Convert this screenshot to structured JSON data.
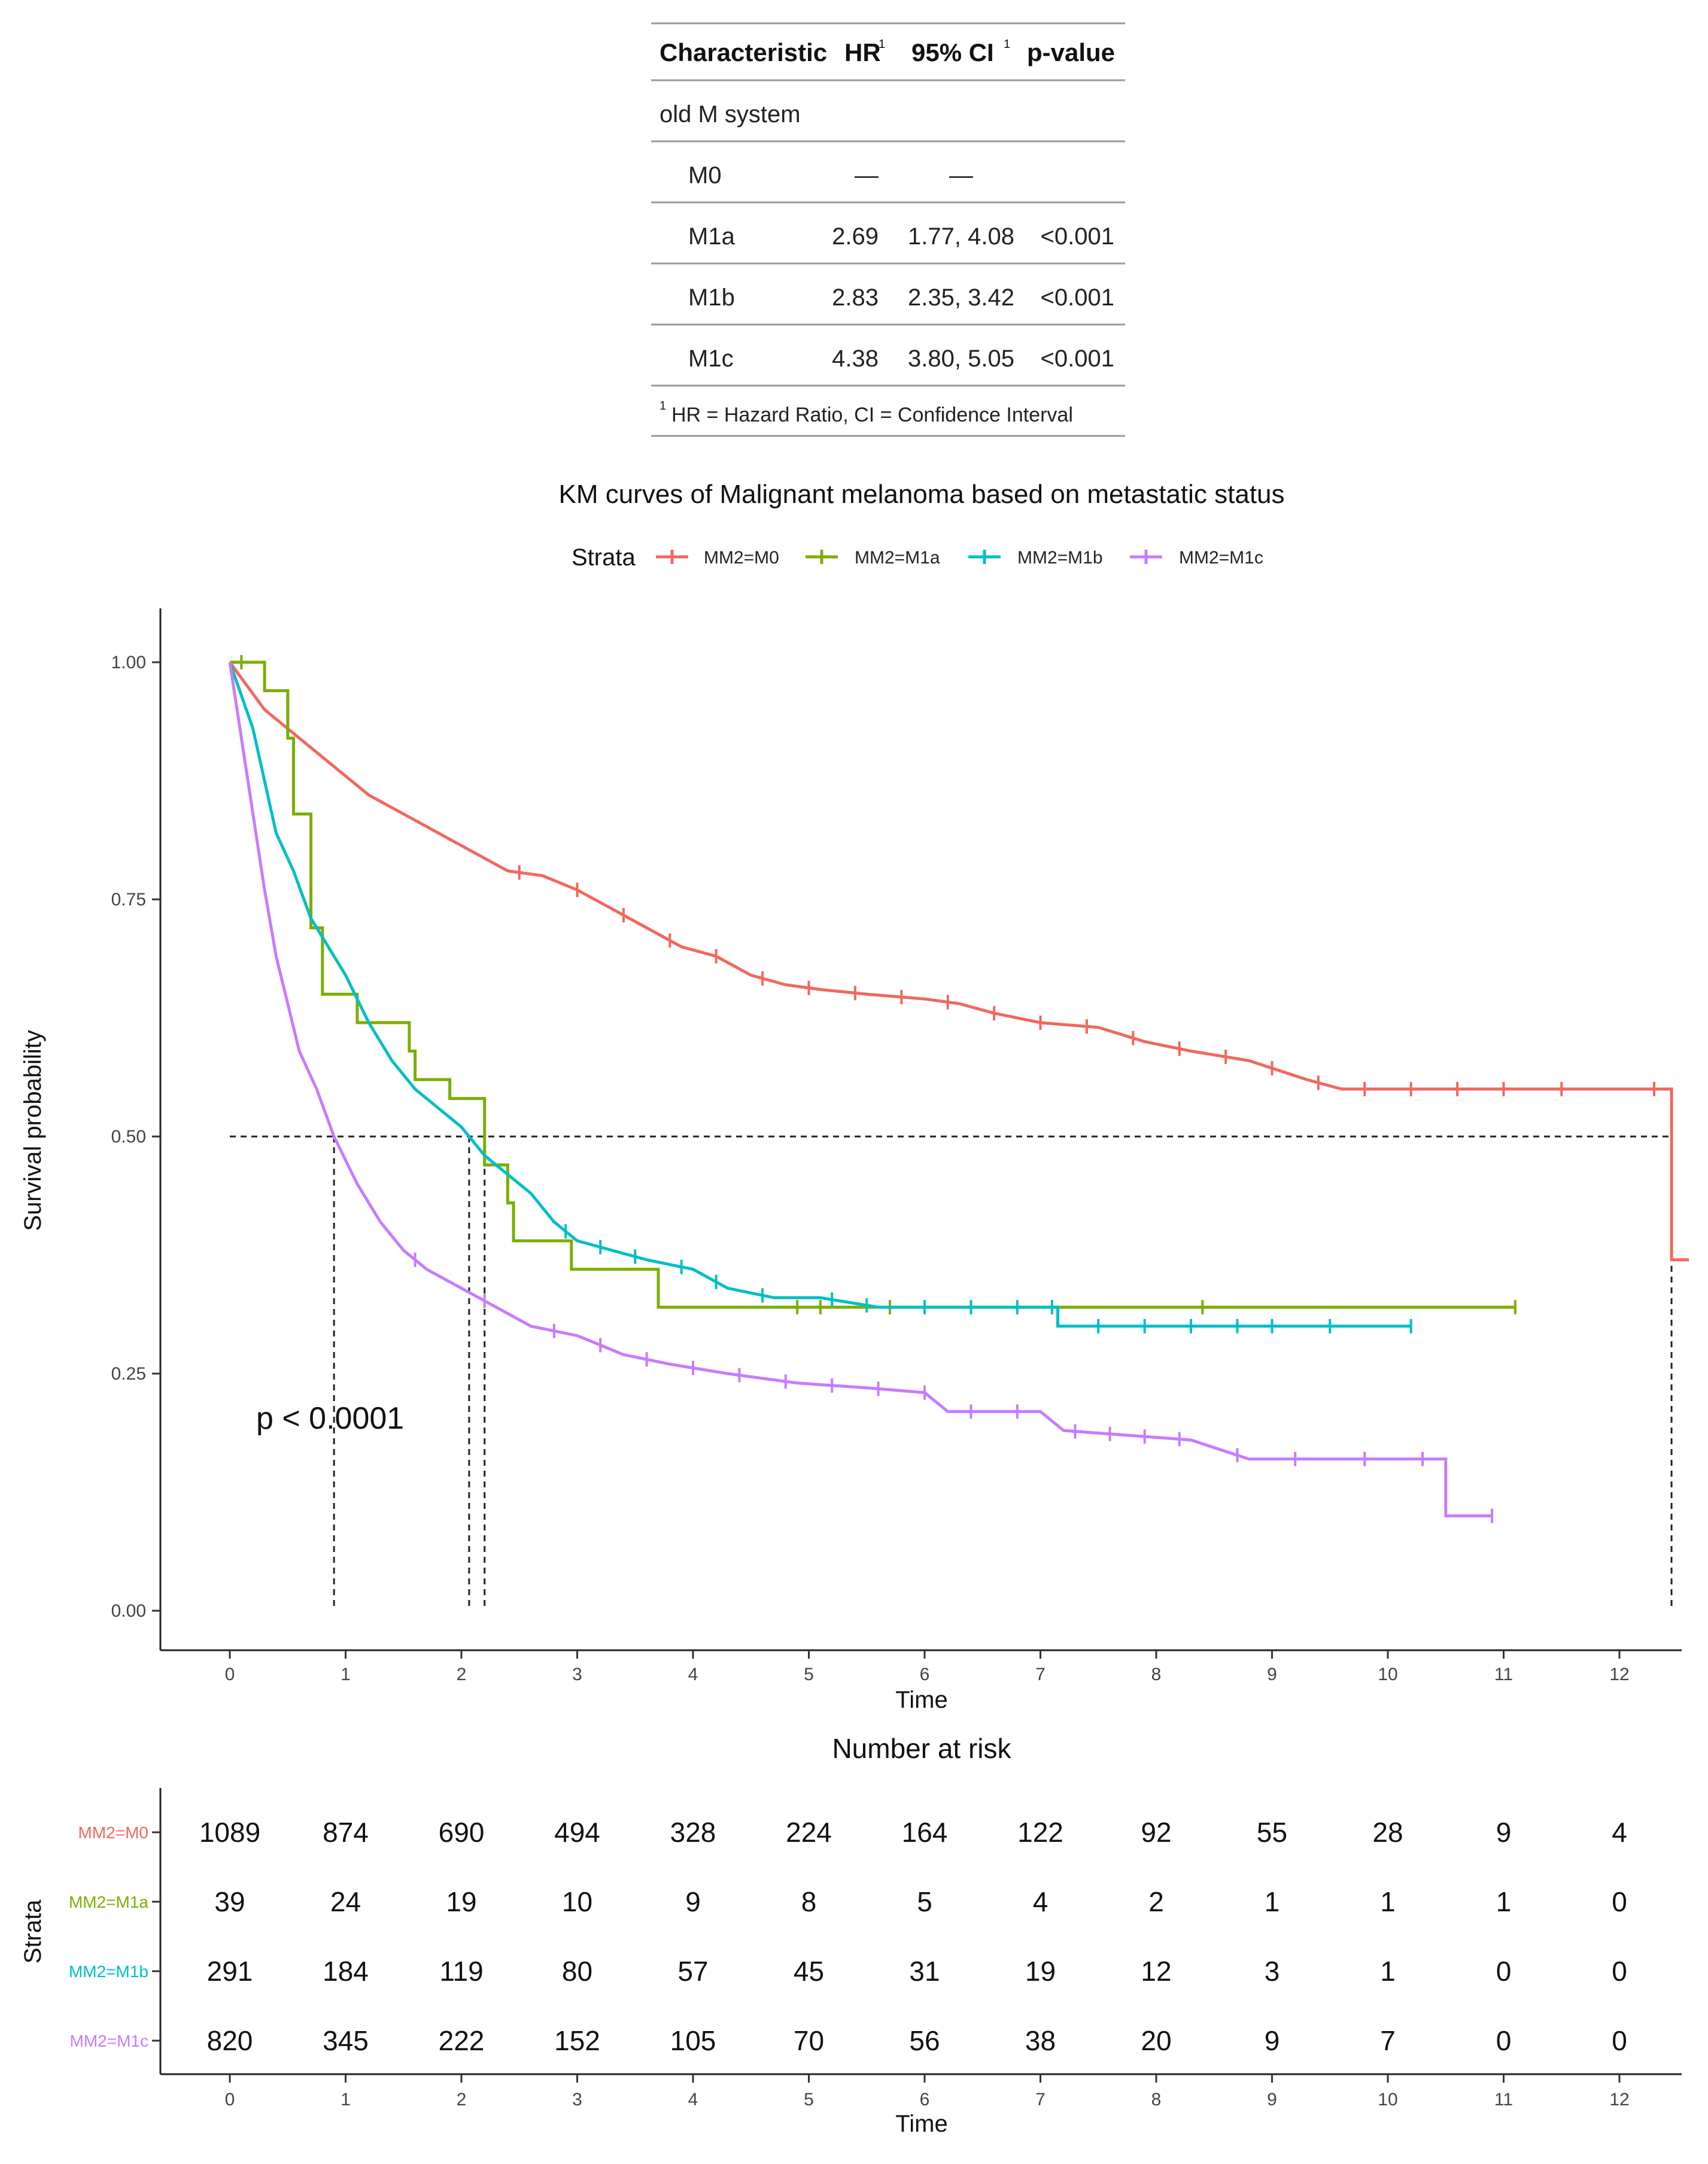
{
  "hr_table": {
    "headers": {
      "characteristic": "Characteristic",
      "hr": "HR",
      "hr_sup": "1",
      "ci": "95% CI",
      "ci_sup": "1",
      "pvalue": "p-value"
    },
    "group_label": "old M system",
    "rows": [
      {
        "label": "M0",
        "hr": "—",
        "ci": "—",
        "p": ""
      },
      {
        "label": "M1a",
        "hr": "2.69",
        "ci": "1.77, 4.08",
        "p": "<0.001"
      },
      {
        "label": "M1b",
        "hr": "2.83",
        "ci": "2.35, 3.42",
        "p": "<0.001"
      },
      {
        "label": "M1c",
        "hr": "4.38",
        "ci": "3.80, 5.05",
        "p": "<0.001"
      }
    ],
    "footnote_sup": "1",
    "footnote": "HR = Hazard Ratio, CI = Confidence Interval"
  },
  "chart_data": {
    "type": "line",
    "subtype": "kaplan-meier step curves",
    "title": "KM curves of Malignant melanoma based on metastatic status",
    "legend_title": "Strata",
    "xlabel": "Time",
    "ylabel": "Survival probability",
    "xlim": [
      0,
      12.5
    ],
    "ylim": [
      0,
      1
    ],
    "x_ticks": [
      0,
      1,
      2,
      3,
      4,
      5,
      6,
      7,
      8,
      9,
      10,
      11,
      12
    ],
    "y_ticks": [
      "0.00",
      "0.25",
      "0.50",
      "0.75",
      "1.00"
    ],
    "median_reference": 0.5,
    "pvalue_annotation": "p < 0.0001",
    "series": [
      {
        "name": "MM2=M0",
        "color": "#f0685f",
        "points": [
          [
            0,
            1
          ],
          [
            0.3,
            0.95
          ],
          [
            0.6,
            0.92
          ],
          [
            0.9,
            0.89
          ],
          [
            1.2,
            0.86
          ],
          [
            1.5,
            0.84
          ],
          [
            1.8,
            0.82
          ],
          [
            2.1,
            0.8
          ],
          [
            2.4,
            0.78
          ],
          [
            2.7,
            0.775
          ],
          [
            3.0,
            0.76
          ],
          [
            3.3,
            0.74
          ],
          [
            3.6,
            0.72
          ],
          [
            3.9,
            0.7
          ],
          [
            4.2,
            0.69
          ],
          [
            4.5,
            0.67
          ],
          [
            4.8,
            0.66
          ],
          [
            5.1,
            0.655
          ],
          [
            5.5,
            0.65
          ],
          [
            6.0,
            0.645
          ],
          [
            6.3,
            0.64
          ],
          [
            6.6,
            0.63
          ],
          [
            7.0,
            0.62
          ],
          [
            7.5,
            0.615
          ],
          [
            7.9,
            0.6
          ],
          [
            8.3,
            0.59
          ],
          [
            8.8,
            0.58
          ],
          [
            9.3,
            0.56
          ],
          [
            9.6,
            0.55
          ],
          [
            10.5,
            0.55
          ],
          [
            12.45,
            0.55
          ],
          [
            12.45,
            0.37
          ],
          [
            12.6,
            0.37
          ]
        ],
        "censor_times": [
          2.5,
          3.0,
          3.4,
          3.8,
          4.2,
          4.6,
          5.0,
          5.4,
          5.8,
          6.2,
          6.6,
          7.0,
          7.4,
          7.8,
          8.2,
          8.6,
          9.0,
          9.4,
          9.8,
          10.2,
          10.6,
          11.0,
          11.5,
          12.3
        ]
      },
      {
        "name": "MM2=M1a",
        "color": "#7cae00",
        "points": [
          [
            0,
            1
          ],
          [
            0.3,
            1
          ],
          [
            0.3,
            0.97
          ],
          [
            0.5,
            0.97
          ],
          [
            0.5,
            0.92
          ],
          [
            0.55,
            0.92
          ],
          [
            0.55,
            0.84
          ],
          [
            0.7,
            0.84
          ],
          [
            0.7,
            0.72
          ],
          [
            0.8,
            0.72
          ],
          [
            0.8,
            0.65
          ],
          [
            1.1,
            0.65
          ],
          [
            1.1,
            0.62
          ],
          [
            1.55,
            0.62
          ],
          [
            1.55,
            0.59
          ],
          [
            1.6,
            0.59
          ],
          [
            1.6,
            0.56
          ],
          [
            1.9,
            0.56
          ],
          [
            1.9,
            0.54
          ],
          [
            2.2,
            0.54
          ],
          [
            2.2,
            0.47
          ],
          [
            2.4,
            0.47
          ],
          [
            2.4,
            0.43
          ],
          [
            2.45,
            0.43
          ],
          [
            2.45,
            0.39
          ],
          [
            2.95,
            0.39
          ],
          [
            2.95,
            0.36
          ],
          [
            3.7,
            0.36
          ],
          [
            3.7,
            0.32
          ],
          [
            11.1,
            0.32
          ]
        ],
        "censor_times": [
          0.1,
          4.9,
          5.1,
          5.7,
          8.4,
          11.1
        ]
      },
      {
        "name": "MM2=M1b",
        "color": "#00bfc4",
        "points": [
          [
            0,
            1
          ],
          [
            0.2,
            0.93
          ],
          [
            0.4,
            0.82
          ],
          [
            0.55,
            0.78
          ],
          [
            0.7,
            0.73
          ],
          [
            0.85,
            0.7
          ],
          [
            1.0,
            0.67
          ],
          [
            1.2,
            0.62
          ],
          [
            1.4,
            0.58
          ],
          [
            1.6,
            0.55
          ],
          [
            1.8,
            0.53
          ],
          [
            2.0,
            0.51
          ],
          [
            2.2,
            0.48
          ],
          [
            2.4,
            0.46
          ],
          [
            2.6,
            0.44
          ],
          [
            2.8,
            0.41
          ],
          [
            3.0,
            0.39
          ],
          [
            3.3,
            0.38
          ],
          [
            3.6,
            0.37
          ],
          [
            4.0,
            0.36
          ],
          [
            4.3,
            0.34
          ],
          [
            4.7,
            0.33
          ],
          [
            5.1,
            0.33
          ],
          [
            5.6,
            0.32
          ],
          [
            7.15,
            0.32
          ],
          [
            7.15,
            0.3
          ],
          [
            10.2,
            0.3
          ]
        ],
        "censor_times": [
          2.9,
          3.2,
          3.5,
          3.9,
          4.2,
          4.6,
          5.2,
          5.5,
          6.0,
          6.4,
          6.8,
          7.1,
          7.5,
          7.9,
          8.3,
          8.7,
          9.0,
          9.5,
          10.2
        ]
      },
      {
        "name": "MM2=M1c",
        "color": "#c77cff",
        "points": [
          [
            0,
            1
          ],
          [
            0.1,
            0.92
          ],
          [
            0.2,
            0.84
          ],
          [
            0.3,
            0.76
          ],
          [
            0.4,
            0.69
          ],
          [
            0.5,
            0.64
          ],
          [
            0.6,
            0.59
          ],
          [
            0.75,
            0.55
          ],
          [
            0.9,
            0.5
          ],
          [
            1.1,
            0.45
          ],
          [
            1.3,
            0.41
          ],
          [
            1.5,
            0.38
          ],
          [
            1.7,
            0.36
          ],
          [
            2.0,
            0.34
          ],
          [
            2.3,
            0.32
          ],
          [
            2.6,
            0.3
          ],
          [
            3.0,
            0.29
          ],
          [
            3.4,
            0.27
          ],
          [
            3.8,
            0.26
          ],
          [
            4.3,
            0.25
          ],
          [
            4.9,
            0.24
          ],
          [
            5.5,
            0.235
          ],
          [
            6.0,
            0.23
          ],
          [
            6.2,
            0.21
          ],
          [
            7.0,
            0.21
          ],
          [
            7.2,
            0.19
          ],
          [
            8.3,
            0.18
          ],
          [
            8.8,
            0.16
          ],
          [
            10.5,
            0.16
          ],
          [
            10.5,
            0.1
          ],
          [
            10.9,
            0.1
          ]
        ],
        "censor_times": [
          1.6,
          2.2,
          2.8,
          3.2,
          3.6,
          4.0,
          4.4,
          4.8,
          5.2,
          5.6,
          6.0,
          6.4,
          6.8,
          7.3,
          7.6,
          7.9,
          8.2,
          8.7,
          9.2,
          9.8,
          10.3,
          10.9
        ]
      }
    ]
  },
  "risk_table": {
    "title": "Number at risk",
    "ylabel": "Strata",
    "xlabel": "Time",
    "x_ticks": [
      0,
      1,
      2,
      3,
      4,
      5,
      6,
      7,
      8,
      9,
      10,
      11,
      12
    ],
    "rows": [
      {
        "name": "MM2=M0",
        "color": "#f0685f",
        "values": [
          1089,
          874,
          690,
          494,
          328,
          224,
          164,
          122,
          92,
          55,
          28,
          9,
          4
        ]
      },
      {
        "name": "MM2=M1a",
        "color": "#7cae00",
        "values": [
          39,
          24,
          19,
          10,
          9,
          8,
          5,
          4,
          2,
          1,
          1,
          1,
          0
        ]
      },
      {
        "name": "MM2=M1b",
        "color": "#00bfc4",
        "values": [
          291,
          184,
          119,
          80,
          57,
          45,
          31,
          19,
          12,
          3,
          1,
          0,
          0
        ]
      },
      {
        "name": "MM2=M1c",
        "color": "#c77cff",
        "values": [
          820,
          345,
          222,
          152,
          105,
          70,
          56,
          38,
          20,
          9,
          7,
          0,
          0
        ]
      }
    ]
  }
}
